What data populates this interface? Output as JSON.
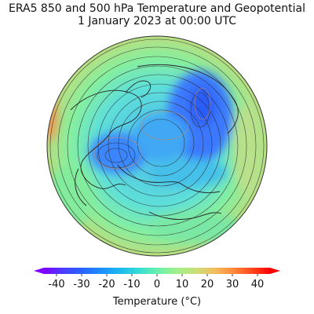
{
  "figure": {
    "title_line1": "ERA5 850 and 500 hPa Temperature and Geopotential",
    "title_line2": "1 January 2023 at 00:00 UTC"
  },
  "map": {
    "projection": "north-polar orthographic",
    "fields": [
      "850 hPa temperature (filled colors)",
      "500 hPa geopotential (contour lines)"
    ]
  },
  "colorbar": {
    "label": "Temperature (°C)",
    "range": [
      -45,
      45
    ],
    "extend": "both",
    "ticks": [
      "-40",
      "-30",
      "-20",
      "-10",
      "0",
      "10",
      "20",
      "30",
      "40"
    ],
    "tick_values": [
      -40,
      -30,
      -20,
      -10,
      0,
      10,
      20,
      30,
      40
    ],
    "colors": [
      "#7f00ff",
      "#4b3cff",
      "#2962ff",
      "#1d8cff",
      "#1ab8f0",
      "#35dcd4",
      "#68f0b0",
      "#9ef08c",
      "#c9e07a",
      "#f0c060",
      "#ff8c3c",
      "#ff4a1e",
      "#ff0000"
    ]
  }
}
